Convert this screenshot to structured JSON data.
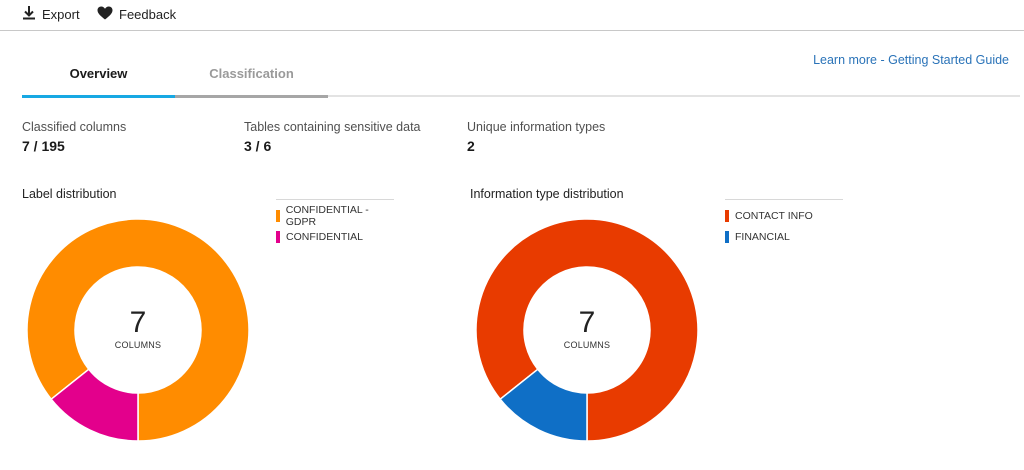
{
  "toolbar": {
    "export_label": "Export",
    "feedback_label": "Feedback"
  },
  "tabs": [
    {
      "label": "Overview",
      "active": true
    },
    {
      "label": "Classification",
      "active": false
    }
  ],
  "learn_more": "Learn more - Getting Started Guide",
  "stats": [
    {
      "label": "Classified columns",
      "value": "7 / 195"
    },
    {
      "label": "Tables containing sensitive data",
      "value": "3 / 6"
    },
    {
      "label": "Unique information types",
      "value": "2"
    }
  ],
  "charts": {
    "label_distribution": {
      "title": "Label distribution",
      "total": "7",
      "unit": "COLUMNS",
      "segments": [
        {
          "label": "CONFIDENTIAL - GDPR",
          "value": 6,
          "color": "#ff8c00"
        },
        {
          "label": "CONFIDENTIAL",
          "value": 1,
          "color": "#e3008c"
        }
      ]
    },
    "info_type_distribution": {
      "title": "Information type distribution",
      "total": "7",
      "unit": "COLUMNS",
      "segments": [
        {
          "label": "CONTACT INFO",
          "value": 6,
          "color": "#e83b00"
        },
        {
          "label": "FINANCIAL",
          "value": 1,
          "color": "#0f6fc6"
        }
      ]
    }
  },
  "icons": {
    "export": "download-icon",
    "feedback": "heart-icon"
  }
}
